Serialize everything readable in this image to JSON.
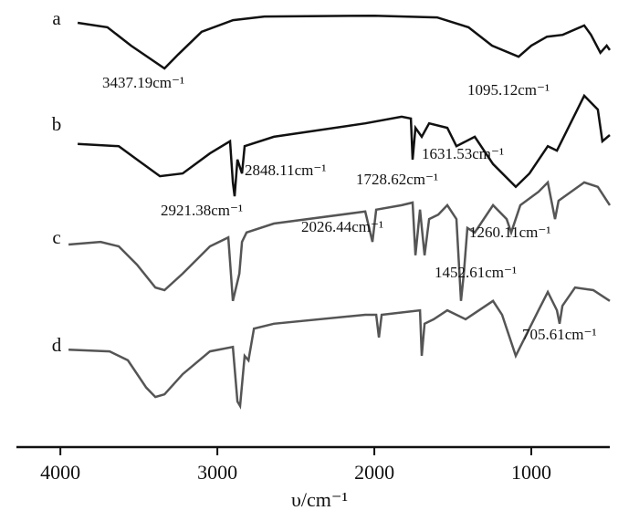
{
  "chart_data": {
    "type": "line",
    "x_label": "υ/cm⁻¹",
    "xlim": [
      4280,
      500
    ],
    "xticks": [
      4000,
      3000,
      2000,
      1000
    ],
    "ylim": [
      0,
      100
    ],
    "series": [
      {
        "name": "a",
        "color": "#111111",
        "x": [
          3890,
          3700,
          3550,
          3337,
          3250,
          3100,
          2900,
          2700,
          2000,
          1600,
          1400,
          1250,
          1081,
          1000,
          900,
          800,
          663,
          620,
          560,
          520,
          500
        ],
        "values": [
          94.9,
          93.9,
          89.8,
          84.7,
          87.8,
          92.9,
          95.5,
          96.3,
          96.5,
          96.1,
          93.9,
          89.8,
          87.3,
          89.8,
          91.8,
          92.2,
          94.3,
          92.2,
          88.2,
          89.8,
          88.8
        ]
      },
      {
        "name": "b",
        "color": "#111111",
        "x": [
          3890,
          3628,
          3512,
          3366,
          3221,
          3047,
          2919,
          2901,
          2890,
          2872,
          2843,
          2826,
          2640,
          2058,
          1826,
          1767,
          1756,
          1738,
          1698,
          1651,
          1535,
          1477,
          1360,
          1244,
          1099,
          1012,
          895,
          837,
          663,
          576,
          547,
          500
        ],
        "values": [
          67.8,
          67.3,
          64.3,
          60.6,
          61.2,
          65.7,
          68.4,
          59.2,
          56.1,
          64.3,
          61.2,
          67.3,
          69.4,
          72.4,
          73.9,
          73.5,
          64.3,
          71.4,
          69.4,
          72.4,
          71.4,
          67.3,
          69.4,
          63.3,
          58.2,
          61.2,
          67.3,
          66.3,
          78.6,
          75.5,
          68.4,
          69.8
        ]
      },
      {
        "name": "c",
        "color": "#555555",
        "x": [
          3948,
          3744,
          3628,
          3512,
          3395,
          3337,
          3221,
          3047,
          2930,
          2901,
          2860,
          2843,
          2814,
          2640,
          2058,
          2012,
          1988,
          1826,
          1756,
          1738,
          1709,
          1680,
          1651,
          1593,
          1535,
          1477,
          1448,
          1430,
          1407,
          1360,
          1244,
          1157,
          1128,
          1070,
          954,
          895,
          849,
          826,
          663,
          576,
          500
        ],
        "values": [
          45.3,
          45.9,
          44.9,
          40.8,
          35.7,
          35.1,
          38.8,
          44.9,
          46.9,
          32.7,
          38.8,
          45.9,
          48.0,
          50.0,
          52.7,
          45.9,
          53.1,
          54.1,
          54.7,
          42.9,
          53.1,
          42.9,
          51.0,
          52.0,
          54.1,
          51.0,
          32.7,
          38.8,
          49.0,
          48.0,
          54.1,
          51.0,
          48.0,
          54.1,
          57.1,
          59.2,
          51.0,
          55.1,
          59.2,
          58.2,
          54.1
        ]
      },
      {
        "name": "d",
        "color": "#555555",
        "x": [
          3948,
          3686,
          3570,
          3453,
          3395,
          3337,
          3221,
          3047,
          2901,
          2872,
          2855,
          2826,
          2802,
          2767,
          2640,
          2058,
          1988,
          1971,
          1953,
          1709,
          1698,
          1680,
          1622,
          1535,
          1477,
          1419,
          1244,
          1186,
          1099,
          1041,
          954,
          895,
          837,
          820,
          802,
          721,
          605,
          500
        ],
        "values": [
          21.8,
          21.4,
          19.4,
          13.3,
          11.2,
          11.8,
          16.3,
          21.4,
          22.4,
          10.2,
          9.2,
          20.4,
          19.4,
          26.5,
          27.6,
          29.6,
          29.6,
          24.5,
          29.6,
          30.6,
          20.4,
          27.6,
          28.6,
          30.6,
          29.6,
          28.6,
          32.7,
          29.6,
          20.4,
          24.5,
          30.6,
          34.7,
          30.6,
          27.6,
          31.6,
          35.7,
          35.1,
          32.7
        ]
      }
    ],
    "annotations": [
      "3437.19cm⁻¹",
      "1095.12cm⁻¹",
      "1631.53cm⁻¹",
      "2848.11cm⁻¹",
      "1728.62cm⁻¹",
      "2921.38cm⁻¹",
      "2026.44cm⁻¹",
      "1260.11cm⁻¹",
      "1452.61cm⁻¹",
      "705.61cm⁻¹"
    ]
  }
}
